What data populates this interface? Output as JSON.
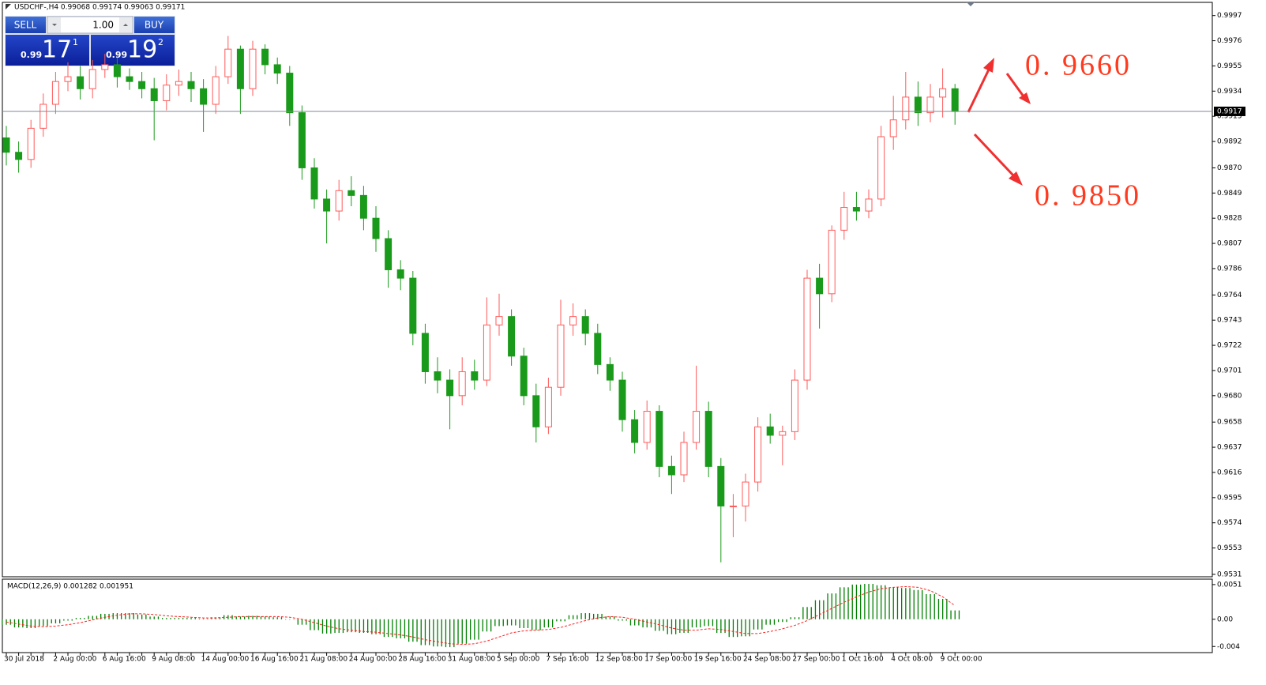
{
  "trade_panel": {
    "sell": "SELL",
    "buy": "BUY",
    "lot": "1.00",
    "sell_price": {
      "head": "0.99",
      "main": "17",
      "sup": "1"
    },
    "buy_price": {
      "head": "0.99",
      "main": "19",
      "sup": "2"
    }
  },
  "chart_data": [
    {
      "type": "candlestick",
      "title": "USDCHF-,H4  0.99068 0.99174 0.99063 0.99171",
      "up_color": "#ff5a5a",
      "down_color": "#1a9a1a",
      "ylim": [
        0.9529,
        1.0008
      ],
      "yticks": [
        0.9997,
        0.9976,
        0.9955,
        0.9934,
        0.9913,
        0.9892,
        {
          "value": 0.987,
          "label": "0.9870"
        },
        0.9849,
        0.9828,
        0.9807,
        0.9786,
        0.9764,
        0.9743,
        0.9722,
        0.9701,
        {
          "value": 0.968,
          "label": "0.9680"
        },
        0.9658,
        0.9637,
        0.9616,
        0.9595,
        0.9574,
        0.9553,
        0.9531
      ],
      "current_price": {
        "value": 0.99171,
        "label": "0.9917"
      },
      "annotations": [
        "0. 9660",
        "0. 9850"
      ],
      "categories": [
        "30 Jul 2018",
        null,
        null,
        null,
        "2 Aug 00:00",
        null,
        null,
        null,
        "6 Aug 16:00",
        null,
        null,
        null,
        "9 Aug 08:00",
        null,
        null,
        null,
        "14 Aug 00:00",
        null,
        null,
        null,
        "16 Aug 16:00",
        null,
        null,
        null,
        "21 Aug 08:00",
        null,
        null,
        null,
        "24 Aug 00:00",
        null,
        null,
        null,
        "28 Aug 16:00",
        null,
        null,
        null,
        "31 Aug 08:00",
        null,
        null,
        null,
        "5 Sep 00:00",
        null,
        null,
        null,
        "7 Sep 16:00",
        null,
        null,
        null,
        "12 Sep 08:00",
        null,
        null,
        null,
        "17 Sep 00:00",
        null,
        null,
        null,
        "19 Sep 16:00",
        null,
        null,
        null,
        "24 Sep 08:00",
        null,
        null,
        null,
        "27 Sep 00:00",
        null,
        null,
        null,
        "1 Oct 16:00",
        null,
        null,
        null,
        "4 Oct 08:00",
        null,
        null,
        null,
        "9 Oct 00:00",
        null
      ],
      "open": [
        0.9895,
        0.9883,
        0.9877,
        0.9903,
        0.9923,
        0.9942,
        0.9946,
        0.9936,
        0.9952,
        0.9956,
        0.9946,
        0.9942,
        0.9936,
        0.9926,
        0.9939,
        0.9942,
        0.9936,
        0.9923,
        0.9946,
        0.9969,
        0.9936,
        0.9969,
        0.9956,
        0.9949,
        0.9916,
        0.987,
        0.9844,
        0.9834,
        0.9851,
        0.9847,
        0.9828,
        0.9811,
        0.9785,
        0.9778,
        0.9732,
        0.97,
        0.9693,
        0.968,
        0.97,
        0.9693,
        0.9739,
        0.9746,
        0.9713,
        0.968,
        0.9654,
        0.9687,
        0.9739,
        0.9746,
        0.9732,
        0.9706,
        0.9693,
        0.966,
        0.9641,
        0.9667,
        0.9621,
        0.9614,
        0.9641,
        0.9667,
        0.9621,
        0.9588,
        0.9588,
        0.9608,
        0.9654,
        0.9647,
        0.965,
        0.9693,
        0.9778,
        0.9765,
        0.9818,
        0.9837,
        0.9834,
        0.9844,
        0.9896,
        0.991,
        0.9929,
        0.9916,
        0.9929,
        0.9936
      ],
      "high": [
        0.9905,
        0.9892,
        0.991,
        0.9932,
        0.995,
        0.9958,
        0.9955,
        0.996,
        0.9965,
        0.9962,
        0.9953,
        0.995,
        0.9945,
        0.9948,
        0.9952,
        0.995,
        0.9944,
        0.9955,
        0.998,
        0.9972,
        0.9976,
        0.9973,
        0.9962,
        0.9955,
        0.9922,
        0.9878,
        0.9852,
        0.986,
        0.9863,
        0.9855,
        0.9838,
        0.9818,
        0.9793,
        0.9784,
        0.974,
        0.9712,
        0.9702,
        0.9712,
        0.971,
        0.9762,
        0.9765,
        0.9752,
        0.972,
        0.969,
        0.9695,
        0.976,
        0.9757,
        0.9752,
        0.974,
        0.9712,
        0.97,
        0.9668,
        0.9676,
        0.9672,
        0.963,
        0.965,
        0.9705,
        0.9675,
        0.9628,
        0.9598,
        0.9615,
        0.9662,
        0.9665,
        0.9655,
        0.9702,
        0.9785,
        0.979,
        0.9822,
        0.985,
        0.985,
        0.9852,
        0.9905,
        0.993,
        0.995,
        0.9942,
        0.994,
        0.9953,
        0.994
      ],
      "low": [
        0.9872,
        0.9866,
        0.987,
        0.9896,
        0.9915,
        0.9934,
        0.9927,
        0.9928,
        0.9945,
        0.9937,
        0.9935,
        0.9928,
        0.9893,
        0.9918,
        0.993,
        0.9925,
        0.99,
        0.9915,
        0.994,
        0.9915,
        0.993,
        0.9948,
        0.994,
        0.9905,
        0.986,
        0.9836,
        0.9807,
        0.9826,
        0.9838,
        0.9818,
        0.98,
        0.977,
        0.9768,
        0.9722,
        0.969,
        0.9682,
        0.9652,
        0.9672,
        0.9685,
        0.9688,
        0.973,
        0.9705,
        0.9672,
        0.9641,
        0.9648,
        0.968,
        0.973,
        0.9722,
        0.9698,
        0.9684,
        0.965,
        0.9632,
        0.9635,
        0.9612,
        0.9598,
        0.9608,
        0.9635,
        0.9612,
        0.9541,
        0.9562,
        0.9575,
        0.96,
        0.964,
        0.9622,
        0.9643,
        0.9685,
        0.9736,
        0.9758,
        0.981,
        0.9826,
        0.9828,
        0.9838,
        0.9885,
        0.9902,
        0.9905,
        0.9908,
        0.9912,
        0.9906
      ],
      "close": [
        0.9883,
        0.9877,
        0.9903,
        0.9923,
        0.9942,
        0.9946,
        0.9936,
        0.9952,
        0.9956,
        0.9946,
        0.9942,
        0.9936,
        0.9926,
        0.9939,
        0.9942,
        0.9936,
        0.9923,
        0.9946,
        0.9969,
        0.9936,
        0.9969,
        0.9956,
        0.9949,
        0.9916,
        0.987,
        0.9844,
        0.9834,
        0.9851,
        0.9847,
        0.9828,
        0.9811,
        0.9785,
        0.9778,
        0.9732,
        0.97,
        0.9693,
        0.968,
        0.97,
        0.9693,
        0.9739,
        0.9746,
        0.9713,
        0.968,
        0.9654,
        0.9687,
        0.9739,
        0.9746,
        0.9732,
        0.9706,
        0.9693,
        0.966,
        0.9641,
        0.9667,
        0.9621,
        0.9614,
        0.9641,
        0.9667,
        0.9621,
        0.9588,
        0.9588,
        0.9608,
        0.9654,
        0.9647,
        0.965,
        0.9693,
        0.9778,
        0.9765,
        0.9818,
        0.9837,
        0.9834,
        0.9844,
        0.9896,
        0.991,
        0.9929,
        0.9916,
        0.9929,
        0.9936,
        0.9917
      ]
    },
    {
      "type": "bar",
      "title": "MACD(12,26,9) 0.001282 0.001951",
      "ylim": [
        -0.0049,
        0.0059
      ],
      "yticks": [
        0.0051,
        {
          "value": 0,
          "label": "0.00"
        },
        -0.004
      ],
      "series": [
        {
          "color": "#008000",
          "values": [
            -0.0008,
            -0.0012,
            -0.0013,
            -0.001,
            -0.0006,
            -0.0002,
            0.0002,
            0.0005,
            0.0008,
            0.0009,
            0.0009,
            0.0007,
            0.0004,
            0.0002,
            0.0002,
            0.0002,
            0.0001,
            0.0003,
            0.0006,
            0.0004,
            0.0005,
            0.0004,
            0.0003,
            0,
            -0.0008,
            -0.0016,
            -0.0021,
            -0.002,
            -0.0019,
            -0.002,
            -0.0022,
            -0.0026,
            -0.0028,
            -0.0033,
            -0.0038,
            -0.004,
            -0.0041,
            -0.0036,
            -0.003,
            -0.0018,
            -0.001,
            -0.0009,
            -0.0013,
            -0.0016,
            -0.0012,
            -0.0003,
            0.0006,
            0.0009,
            0.0008,
            0.0004,
            -0.0002,
            -0.0009,
            -0.0012,
            -0.0017,
            -0.0022,
            -0.002,
            -0.0012,
            -0.001,
            -0.002,
            -0.0026,
            -0.0025,
            -0.0015,
            -0.0008,
            -0.0004,
            0.0003,
            0.0018,
            0.0028,
            0.0038,
            0.0047,
            0.0051,
            0.0052,
            0.005,
            0.0047,
            0.0046,
            0.0043,
            0.0037,
            0.003,
            0.0013
          ]
        },
        {
          "color": "#ff2020",
          "style": "dashed",
          "values": [
            -0.0004,
            -0.0007,
            -0.001,
            -0.0011,
            -0.001,
            -0.0008,
            -0.0005,
            -0.0001,
            0.0003,
            0.0006,
            0.0008,
            0.0008,
            0.0007,
            0.0005,
            0.0004,
            0.0003,
            0.0002,
            0.0002,
            0.0003,
            0.0004,
            0.0004,
            0.0004,
            0.0004,
            0.0003,
            0,
            -0.0005,
            -0.001,
            -0.0014,
            -0.0016,
            -0.0018,
            -0.0019,
            -0.0021,
            -0.0023,
            -0.0026,
            -0.003,
            -0.0033,
            -0.0036,
            -0.0037,
            -0.0036,
            -0.0032,
            -0.0026,
            -0.002,
            -0.0017,
            -0.0016,
            -0.0015,
            -0.0012,
            -0.0007,
            -0.0002,
            0.0002,
            0.0004,
            0.0003,
            0,
            -0.0004,
            -0.0008,
            -0.0013,
            -0.0016,
            -0.0016,
            -0.0014,
            -0.0015,
            -0.0018,
            -0.0021,
            -0.0021,
            -0.0018,
            -0.0014,
            -0.0009,
            -0.0002,
            0.0007,
            0.0016,
            0.0025,
            0.0033,
            0.004,
            0.0045,
            0.0047,
            0.0048,
            0.0047,
            0.0042,
            0.0033,
            0.002
          ]
        }
      ]
    }
  ]
}
